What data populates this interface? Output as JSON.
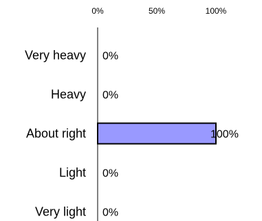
{
  "chart_data": {
    "type": "bar",
    "orientation": "horizontal",
    "categories": [
      "Very heavy",
      "Heavy",
      "About right",
      "Light",
      "Very light"
    ],
    "values": [
      0,
      0,
      100,
      0,
      0
    ],
    "value_labels": [
      "0%",
      "0%",
      "100%",
      "0%",
      "0%"
    ],
    "xlim": [
      0,
      100
    ],
    "xticks": [
      0,
      50,
      100
    ],
    "xtick_labels": [
      "0%",
      "50%",
      "100%"
    ],
    "xaxis_position": "top",
    "grid": false,
    "legend": "none",
    "bar_fill": "#9999ff",
    "bar_stroke": "#000000"
  }
}
